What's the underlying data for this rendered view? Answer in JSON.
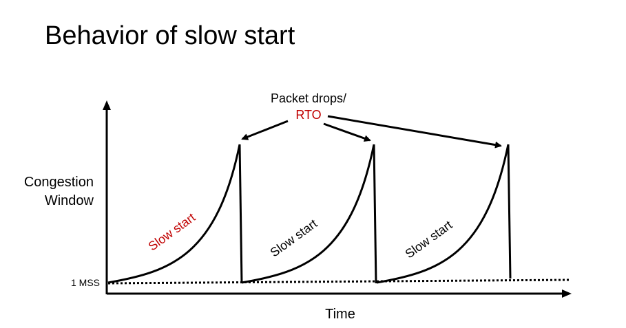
{
  "title": "Behavior of slow start",
  "axes": {
    "y_label_line1": "Congestion",
    "y_label_line2": "Window",
    "x_label": "Time",
    "baseline_label": "1 MSS"
  },
  "annotation": {
    "line1": "Packet drops/",
    "line2": "RTO"
  },
  "phases": [
    {
      "label": "Slow start",
      "color": "#c00000"
    },
    {
      "label": "Slow start",
      "color": "#000000"
    },
    {
      "label": "Slow start",
      "color": "#000000"
    }
  ],
  "colors": {
    "ink": "#000000",
    "accent": "#c00000",
    "background": "#ffffff"
  }
}
